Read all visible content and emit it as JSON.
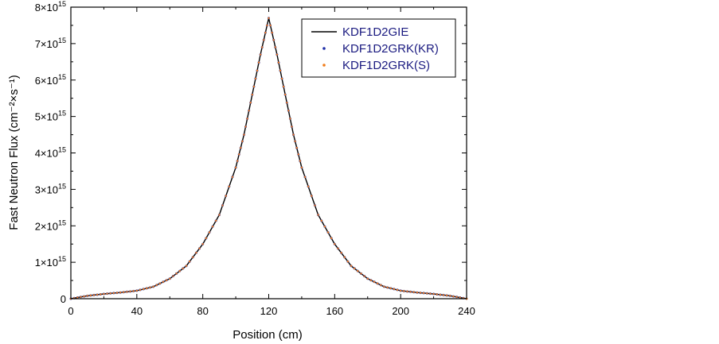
{
  "chart_data": {
    "type": "line",
    "xlabel": "Position (cm)",
    "ylabel": "Fast Neutron Flux (cm⁻²×s⁻¹)",
    "xlim": [
      0,
      240
    ],
    "ylim": [
      0,
      8000000000000000.0
    ],
    "xticks": [
      0,
      40,
      80,
      120,
      160,
      200,
      240
    ],
    "xtick_labels": [
      "0",
      "40",
      "80",
      "120",
      "160",
      "200",
      "240"
    ],
    "yticks": [
      0,
      1000000000000000.0,
      2000000000000000.0,
      3000000000000000.0,
      4000000000000000.0,
      5000000000000000.0,
      6000000000000000.0,
      7000000000000000.0,
      8000000000000000.0
    ],
    "ytick_labels": [
      {
        "mantissa": "0",
        "exp": ""
      },
      {
        "mantissa": "1×10",
        "exp": "15"
      },
      {
        "mantissa": "2×10",
        "exp": "15"
      },
      {
        "mantissa": "3×10",
        "exp": "15"
      },
      {
        "mantissa": "4×10",
        "exp": "15"
      },
      {
        "mantissa": "5×10",
        "exp": "15"
      },
      {
        "mantissa": "6×10",
        "exp": "15"
      },
      {
        "mantissa": "7×10",
        "exp": "15"
      },
      {
        "mantissa": "8×10",
        "exp": "15"
      }
    ],
    "grid": false,
    "legend_position": "top-right",
    "x": [
      0,
      10,
      20,
      30,
      40,
      50,
      60,
      70,
      80,
      90,
      100,
      105,
      110,
      115,
      120,
      125,
      130,
      135,
      140,
      150,
      160,
      170,
      180,
      190,
      200,
      210,
      220,
      230,
      240
    ],
    "series": [
      {
        "name": "KDF1D2GIE",
        "style": "line",
        "color": "#000000",
        "values": [
          0,
          80000000000000.0,
          130000000000000.0,
          170000000000000.0,
          220000000000000.0,
          330000000000000.0,
          550000000000000.0,
          900000000000000.0,
          1500000000000000.0,
          2300000000000000.0,
          3600000000000000.0,
          4500000000000000.0,
          5600000000000000.0,
          6700000000000000.0,
          7700000000000000.0,
          6700000000000000.0,
          5600000000000000.0,
          4500000000000000.0,
          3600000000000000.0,
          2300000000000000.0,
          1500000000000000.0,
          900000000000000.0,
          550000000000000.0,
          330000000000000.0,
          220000000000000.0,
          170000000000000.0,
          130000000000000.0,
          80000000000000.0,
          0
        ]
      },
      {
        "name": "KDF1D2GRK(KR)",
        "style": "points",
        "color": "#1f2fa8",
        "values": [
          0,
          80000000000000.0,
          130000000000000.0,
          170000000000000.0,
          220000000000000.0,
          330000000000000.0,
          550000000000000.0,
          900000000000000.0,
          1500000000000000.0,
          2300000000000000.0,
          3600000000000000.0,
          4500000000000000.0,
          5600000000000000.0,
          6700000000000000.0,
          7700000000000000.0,
          6700000000000000.0,
          5600000000000000.0,
          4500000000000000.0,
          3600000000000000.0,
          2300000000000000.0,
          1500000000000000.0,
          900000000000000.0,
          550000000000000.0,
          330000000000000.0,
          220000000000000.0,
          170000000000000.0,
          130000000000000.0,
          80000000000000.0,
          0
        ]
      },
      {
        "name": "KDF1D2GRK(S)",
        "style": "points",
        "color": "#f07d1a",
        "values": [
          0,
          80000000000000.0,
          130000000000000.0,
          170000000000000.0,
          220000000000000.0,
          330000000000000.0,
          550000000000000.0,
          900000000000000.0,
          1500000000000000.0,
          2300000000000000.0,
          3600000000000000.0,
          4500000000000000.0,
          5600000000000000.0,
          6700000000000000.0,
          7700000000000000.0,
          6700000000000000.0,
          5600000000000000.0,
          4500000000000000.0,
          3600000000000000.0,
          2300000000000000.0,
          1500000000000000.0,
          900000000000000.0,
          550000000000000.0,
          330000000000000.0,
          220000000000000.0,
          170000000000000.0,
          130000000000000.0,
          80000000000000.0,
          0
        ]
      }
    ]
  }
}
